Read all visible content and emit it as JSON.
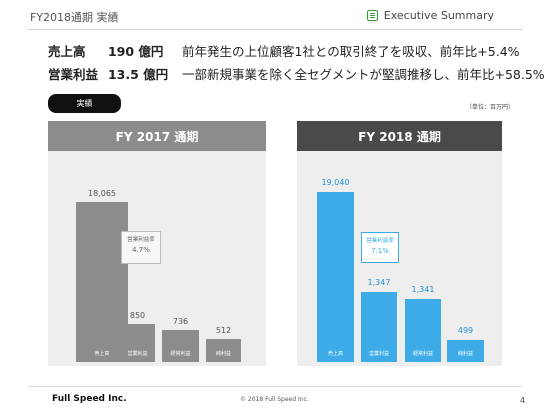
{
  "header": {
    "title": "FY2018通期 実績",
    "section": "Executive Summary"
  },
  "summary": {
    "rows": [
      {
        "label": "売上高",
        "value": "190 億円",
        "text": "前年発生の上位顧客1社との取引終了を吸収、前年比+5.4%"
      },
      {
        "label": "営業利益",
        "value": "13.5 億円",
        "text": "一部新規事業を除く全セグメントが堅調推移し、前年比+58.5%"
      }
    ]
  },
  "tag": "実績",
  "unit": "（単位：百万円）",
  "charts": [
    {
      "title": "FY 2017 通期",
      "bars": [
        {
          "value": "18,065",
          "label": "売上高"
        },
        {
          "value": "850",
          "label": "営業利益"
        },
        {
          "value": "736",
          "label": "経常利益"
        },
        {
          "value": "512",
          "label": "純利益"
        }
      ],
      "note": {
        "label": "営業利益率",
        "value": "4.7%"
      }
    },
    {
      "title": "FY 2018 通期",
      "bars": [
        {
          "value": "19,040",
          "label": "売上高"
        },
        {
          "value": "1,347",
          "label": "営業利益"
        },
        {
          "value": "1,341",
          "label": "経常利益"
        },
        {
          "value": "499",
          "label": "純利益"
        }
      ],
      "note": {
        "label": "営業利益率",
        "value": "7.1%"
      }
    }
  ],
  "chart_data": [
    {
      "type": "bar",
      "title": "FY 2017 通期",
      "categories": [
        "売上高",
        "営業利益",
        "経常利益",
        "純利益"
      ],
      "values": [
        18065,
        850,
        736,
        512
      ],
      "annotation": {
        "label": "営業利益率",
        "value": "4.7%"
      }
    },
    {
      "type": "bar",
      "title": "FY 2018 通期",
      "categories": [
        "売上高",
        "営業利益",
        "経常利益",
        "純利益"
      ],
      "values": [
        19040,
        1347,
        1341,
        499
      ],
      "annotation": {
        "label": "営業利益率",
        "value": "7.1%"
      }
    }
  ],
  "footer": {
    "brand": "Full Speed Inc.",
    "copyright": "© 2018 Full Speed Inc.",
    "page": "4"
  },
  "colors": {
    "fy2017_bar": "#8c8c8c",
    "fy2018_bar": "#3dabe8",
    "fy2018_header": "#4a4a4a",
    "icon_green": "#3a9a3a"
  }
}
